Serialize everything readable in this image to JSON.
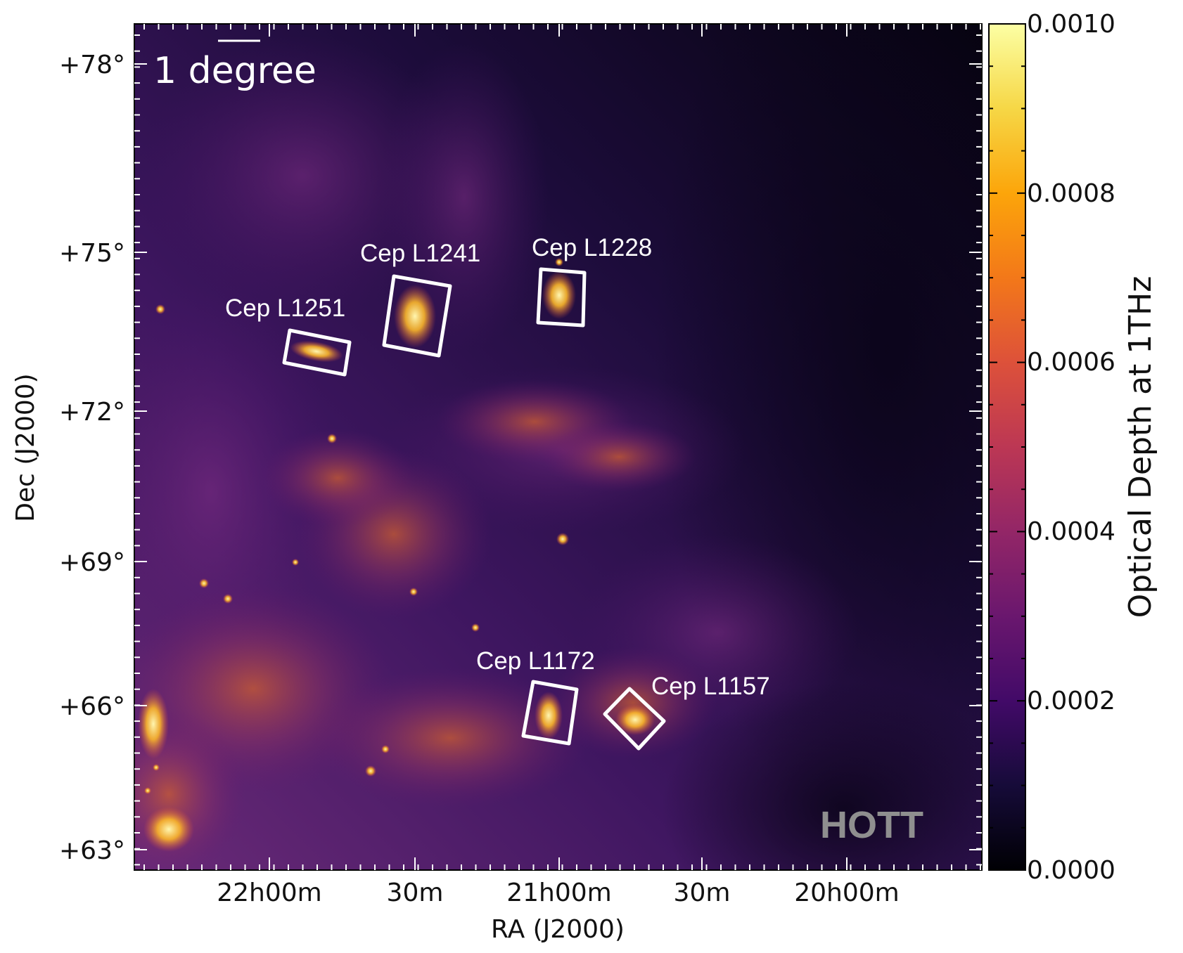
{
  "image": {
    "x_axis_label": "RA (J2000)",
    "y_axis_label": "Dec (J2000)",
    "x_ticks": [
      "22h00m",
      "30m",
      "21h00m",
      "30m",
      "20h00m"
    ],
    "y_ticks": [
      "+78°",
      "+75°",
      "+72°",
      "+69°",
      "+66°",
      "+63°"
    ],
    "scale_bar_label": "1 degree",
    "watermark": "HOTT",
    "colorbar": {
      "title": "Optical Depth at 1THz",
      "ticks": [
        "0.0000",
        "0.0002",
        "0.0004",
        "0.0006",
        "0.0008",
        "0.0010"
      ],
      "min": 0.0,
      "max": 0.001,
      "colormap": "inferno"
    },
    "regions": [
      {
        "name": "Cep L1251"
      },
      {
        "name": "Cep L1241"
      },
      {
        "name": "Cep L1228"
      },
      {
        "name": "Cep L1172"
      },
      {
        "name": "Cep L1157"
      }
    ]
  }
}
